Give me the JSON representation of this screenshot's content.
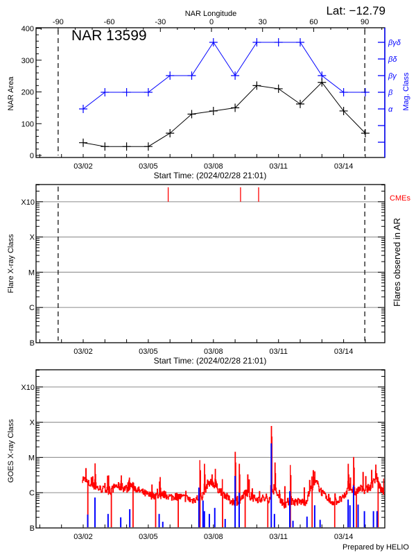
{
  "header": {
    "lat_label": "Lat: −12.79",
    "longitude_title": "NAR Longitude",
    "region_label": "NAR 13599"
  },
  "footer": {
    "credit": "Prepared by HELIO"
  },
  "colors": {
    "area": "#000000",
    "mag_class": "#0000ff",
    "cme": "#ff0000",
    "goes_flux": "#ff0000",
    "flares": "#0000ff",
    "grid": "#999999"
  },
  "chart_data": [
    {
      "type": "line",
      "panel": "region-evolution",
      "xlabel": "Start Time: (2024/02/28 21:01)",
      "x_tick_labels": [
        "03/02",
        "03/05",
        "03/08",
        "03/11",
        "03/14"
      ],
      "ylabel": "NAR Area",
      "ylim": [
        0,
        400
      ],
      "y_ticks": [
        "0",
        "100",
        "200",
        "300",
        "400"
      ],
      "y2label": "Mag. Class",
      "y2_ticks": [
        "α",
        "β",
        "βγ",
        "βδ",
        "βγδ"
      ],
      "top_axis": {
        "label": "NAR Longitude",
        "ticks": [
          -90,
          -60,
          -30,
          0,
          30,
          60,
          90
        ],
        "limb_markers": [
          -90,
          90
        ]
      },
      "x": [
        "03/02",
        "03/03",
        "03/04",
        "03/05",
        "03/06",
        "03/07",
        "03/08",
        "03/09",
        "03/10",
        "03/11",
        "03/12",
        "03/13",
        "03/14",
        "03/15"
      ],
      "series": [
        {
          "axis": "left",
          "values": [
            40,
            28,
            28,
            28,
            70,
            130,
            140,
            150,
            220,
            210,
            162,
            230,
            140,
            70
          ]
        },
        {
          "axis": "right",
          "values": [
            "α",
            "β",
            "β",
            "β",
            "βγ",
            "βγ",
            "βγδ",
            "βγ",
            "βγδ",
            "βγδ",
            "βγδ",
            "βγ",
            "β",
            "β"
          ]
        }
      ]
    },
    {
      "type": "bar",
      "panel": "flares-in-ar",
      "xlabel": "Start Time: (2024/02/28 21:01)",
      "x_tick_labels": [
        "03/02",
        "03/05",
        "03/08",
        "03/11",
        "03/14"
      ],
      "ylabel": "Flare X-ray Class",
      "y_ticks": [
        "B",
        "C",
        "M",
        "X",
        "X10"
      ],
      "y_scale": "log",
      "grid": true,
      "y2label": "Flares observed in AR",
      "cme_label": "CMEs",
      "cmes": [
        "03/05 22:00",
        "03/09 06:00",
        "03/10 02:00"
      ],
      "flares": [],
      "limb_markers": [
        -90,
        90
      ]
    },
    {
      "type": "line",
      "panel": "goes-xray",
      "x_tick_labels": [
        "03/02",
        "03/05",
        "03/08",
        "03/11",
        "03/14"
      ],
      "ylabel": "GOES X-ray Class",
      "y_ticks": [
        "B",
        "C",
        "M",
        "X",
        "X10"
      ],
      "y_scale": "log",
      "grid": true,
      "flux_unit": "W/m2",
      "background_flux": {
        "start": "03/02 00:00",
        "step_hours": 6,
        "values": [
          2.5e-06,
          1.8e-06,
          1.5e-06,
          1.3e-06,
          1.2e-06,
          1.1e-06,
          1.6e-06,
          1.4e-06,
          1.3e-06,
          1.6e-06,
          1.2e-06,
          1e-06,
          8.5e-07,
          8.5e-07,
          8e-07,
          9e-07,
          7.5e-07,
          8e-07,
          7.5e-07,
          7e-07,
          6e-07,
          7e-07,
          8e-07,
          2e-06,
          1.8e-06,
          1.2e-06,
          9e-07,
          6e-07,
          5.5e-07,
          6e-07,
          1.1e-06,
          7e-07,
          6.5e-07,
          7e-07,
          6e-07,
          1.2e-06,
          8e-07,
          4.5e-07,
          6e-07,
          5.5e-07,
          5.5e-07,
          5.5e-07,
          1.4e-06,
          1.9e-06,
          1e-06,
          6e-07,
          5.5e-07,
          6e-07,
          7e-07,
          1.5e-06,
          1e-06,
          1.3e-06,
          1.2e-06,
          1.5e-06,
          2.8e-06,
          1.1e-06
        ]
      },
      "peaks": [
        [
          "03/02 13:00",
          6.6e-06
        ],
        [
          "03/03 04:00",
          3e-06
        ],
        [
          "03/03 18:00",
          3e-06
        ],
        [
          "03/04 03:00",
          2.6e-06
        ],
        [
          "03/05 13:00",
          2.7e-06
        ],
        [
          "03/07 09:00",
          8.4e-06
        ],
        [
          "03/07 14:00",
          6.4e-06
        ],
        [
          "03/08 02:00",
          4.6e-06
        ],
        [
          "03/09 00:00",
          1.4e-05
        ],
        [
          "03/09 04:30",
          6.4e-06
        ],
        [
          "03/10 16:00",
          7.6e-05
        ],
        [
          "03/10 20:00",
          7e-06
        ],
        [
          "03/11 13:00",
          6.1e-06
        ],
        [
          "03/12 16:00",
          3.9e-06
        ],
        [
          "03/14 05:00",
          6.4e-06
        ],
        [
          "03/14 11:00",
          1e-05
        ],
        [
          "03/15 11:30",
          6.1e-06
        ]
      ],
      "data_gaps": [
        "03/02 05:00",
        "03/03 07:00",
        "03/04 07:00",
        "03/05 08:00",
        "03/06 09:00",
        "03/07 09:00",
        "03/08 10:00",
        "03/09 11:00",
        "03/10 12:00",
        "03/11 13:00",
        "03/12 13:00",
        "03/13 14:00",
        "03/14 14:00",
        "03/15 14:00"
      ],
      "flares": [
        [
          "03/02 05:00",
          2.4e-07
        ],
        [
          "03/02 13:00",
          7.3e-07
        ],
        [
          "03/03 03:30",
          2.5e-07
        ],
        [
          "03/03 17:30",
          2e-07
        ],
        [
          "03/04 03:30",
          3.4e-07
        ],
        [
          "03/05 12:00",
          2.5e-07
        ],
        [
          "03/05 16:00",
          1.5e-07
        ],
        [
          "03/07 08:00",
          1.4e-06
        ],
        [
          "03/07 12:30",
          6e-07
        ],
        [
          "03/07 14:00",
          3e-07
        ],
        [
          "03/07 19:30",
          2.5e-07
        ],
        [
          "03/08 01:30",
          3.7e-07
        ],
        [
          "03/08 13:00",
          1.8e-07
        ],
        [
          "03/09 00:00",
          3e-06
        ],
        [
          "03/09 04:30",
          1e-06
        ],
        [
          "03/10 16:00",
          2.5e-05
        ],
        [
          "03/10 19:30",
          2.5e-07
        ],
        [
          "03/11 12:30",
          1.1e-06
        ],
        [
          "03/11 16:00",
          1.6e-07
        ],
        [
          "03/12 07:30",
          2.1e-07
        ],
        [
          "03/12 16:00",
          4.4e-07
        ],
        [
          "03/12 22:00",
          1.7e-07
        ],
        [
          "03/14 05:00",
          6.4e-07
        ],
        [
          "03/14 07:00",
          4.4e-07
        ],
        [
          "03/14 11:00",
          1.6e-06
        ],
        [
          "03/14 16:00",
          4.6e-07
        ],
        [
          "03/14 23:00",
          3e-07
        ],
        [
          "03/15 09:00",
          3e-07
        ],
        [
          "03/15 13:00",
          3e-07
        ]
      ]
    }
  ]
}
